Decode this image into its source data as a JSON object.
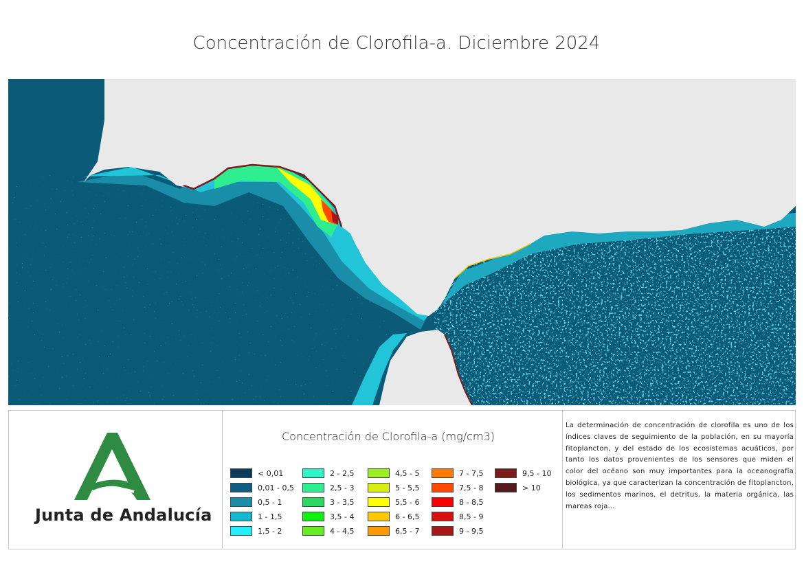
{
  "title": "Concentración de Clorofila-a. Diciembre 2024",
  "map": {
    "colors": {
      "ocean": "#0b5a78",
      "land": "#e9e9e9",
      "shelf": "#1f8aa5",
      "coastal": "#22c4d8"
    }
  },
  "logo": {
    "text": "Junta de Andalucía",
    "color": "#2e8b41"
  },
  "legend": {
    "title": "Concentración de Clorofila-a (mg/cm3)",
    "items": [
      {
        "label": "< 0,01",
        "color": "#0d3b5e"
      },
      {
        "label": "0,01 - 0,5",
        "color": "#0f5d7f"
      },
      {
        "label": "0,5 - 1",
        "color": "#1a8da8"
      },
      {
        "label": "1 - 1,5",
        "color": "#14b9cf"
      },
      {
        "label": "1,5 - 2",
        "color": "#22f0ff"
      },
      {
        "label": "2 - 2,5",
        "color": "#2ff5c6"
      },
      {
        "label": "2,5 - 3",
        "color": "#2fee8f"
      },
      {
        "label": "3 - 3,5",
        "color": "#2ad862"
      },
      {
        "label": "3,5 - 4",
        "color": "#11ee11"
      },
      {
        "label": "4 - 4,5",
        "color": "#66ee22"
      },
      {
        "label": "4,5 - 5",
        "color": "#9cee22"
      },
      {
        "label": "5 - 5,5",
        "color": "#d8ee11"
      },
      {
        "label": "5,5 - 6",
        "color": "#ffff00"
      },
      {
        "label": "6 - 6,5",
        "color": "#ffc800"
      },
      {
        "label": "6,5 - 7",
        "color": "#ff9a00"
      },
      {
        "label": "7 - 7,5",
        "color": "#ff7a00"
      },
      {
        "label": "7,5 - 8",
        "color": "#ff4a00"
      },
      {
        "label": "8 - 8,5",
        "color": "#ff0000"
      },
      {
        "label": "8,5 - 9",
        "color": "#d81010"
      },
      {
        "label": "9 - 9,5",
        "color": "#a81818"
      },
      {
        "label": "9,5 - 10",
        "color": "#7a1c1c"
      },
      {
        "label": "> 10",
        "color": "#551a1e"
      }
    ]
  },
  "description": "La determinación de concentración de clorofila es uno de los índices claves de seguimiento de la población, en su mayoría fitoplancton, y del estado de los ecosistemas acuáticos, por tanto los datos provenientes de los sensores que miden el color del océano son muy importantes para la oceanografía biológica, ya que caracterizan la concentración de fitoplancton, los sedimentos marinos, el detritus, la materia orgánica, las mareas roja..."
}
